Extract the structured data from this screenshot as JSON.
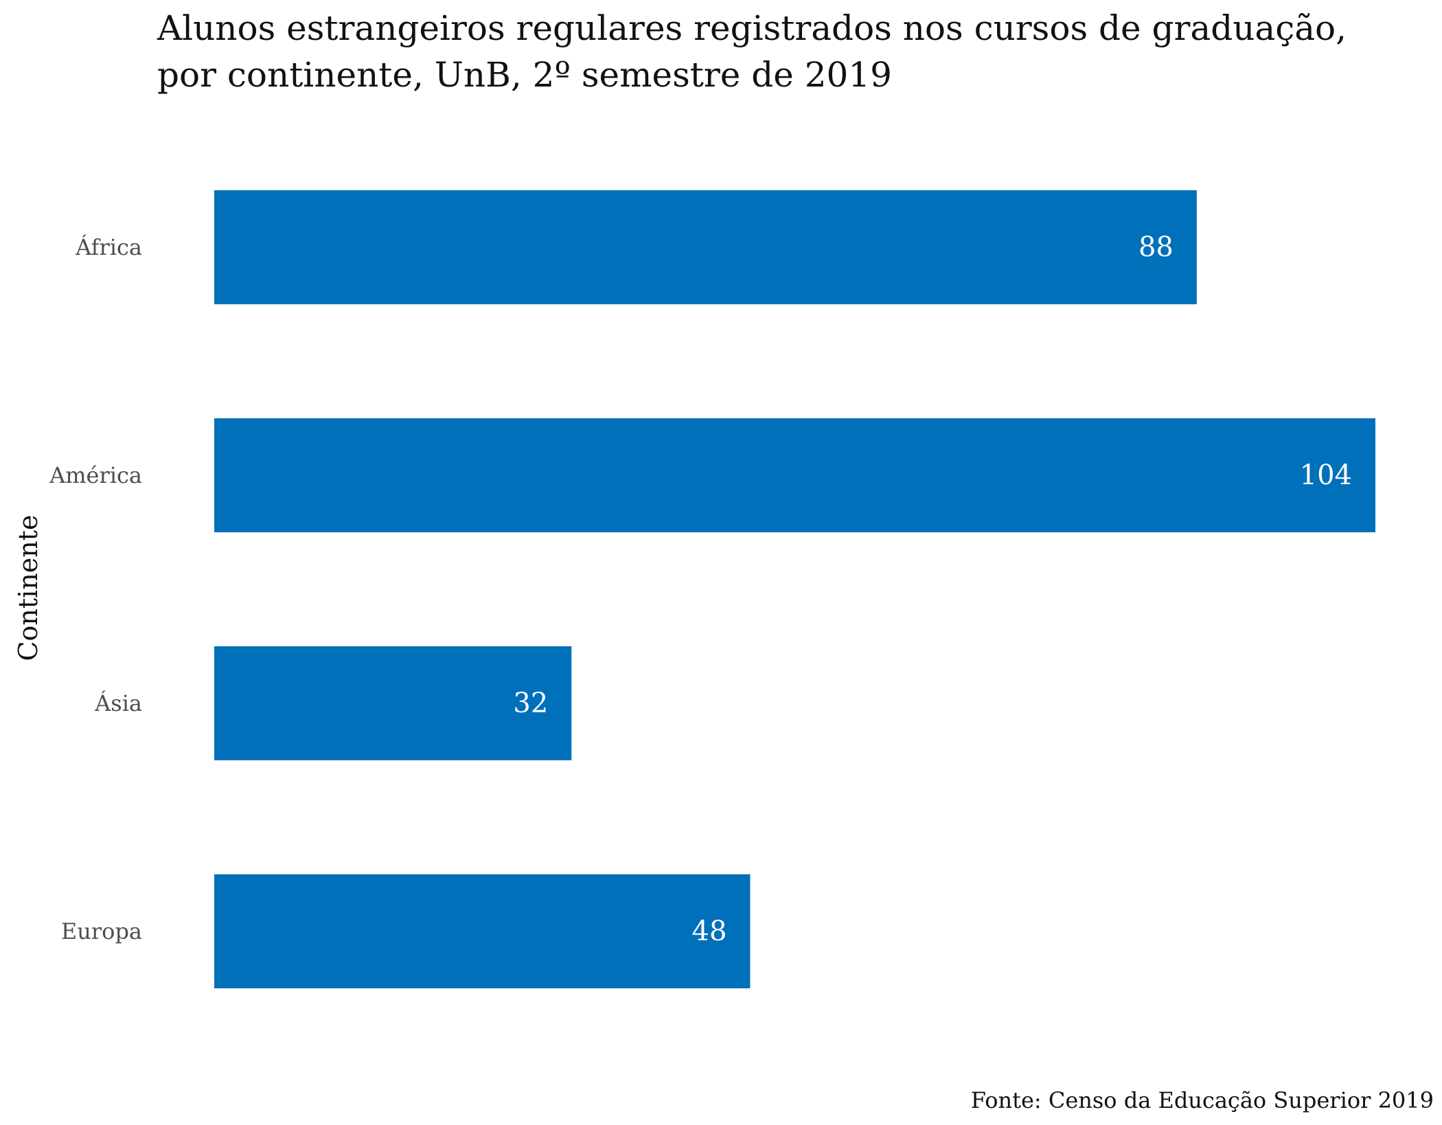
{
  "chart_data": {
    "type": "bar",
    "orientation": "horizontal",
    "title_lines": [
      "Alunos estrangeiros regulares registrados nos cursos de graduação,",
      "por continente, UnB, 2º semestre de 2019"
    ],
    "ylabel": "Continente",
    "xlabel": "",
    "categories": [
      "África",
      "América",
      "Ásia",
      "Europa"
    ],
    "values": [
      88,
      104,
      32,
      48
    ],
    "value_labels": [
      "88",
      "104",
      "32",
      "48"
    ],
    "xlim": [
      0,
      104
    ],
    "grid": false,
    "legend": "none",
    "caption": "Fonte: Censo da Educação Superior 2019",
    "bar_color": "#0070BB",
    "value_label_color": "#FFFFFF"
  }
}
